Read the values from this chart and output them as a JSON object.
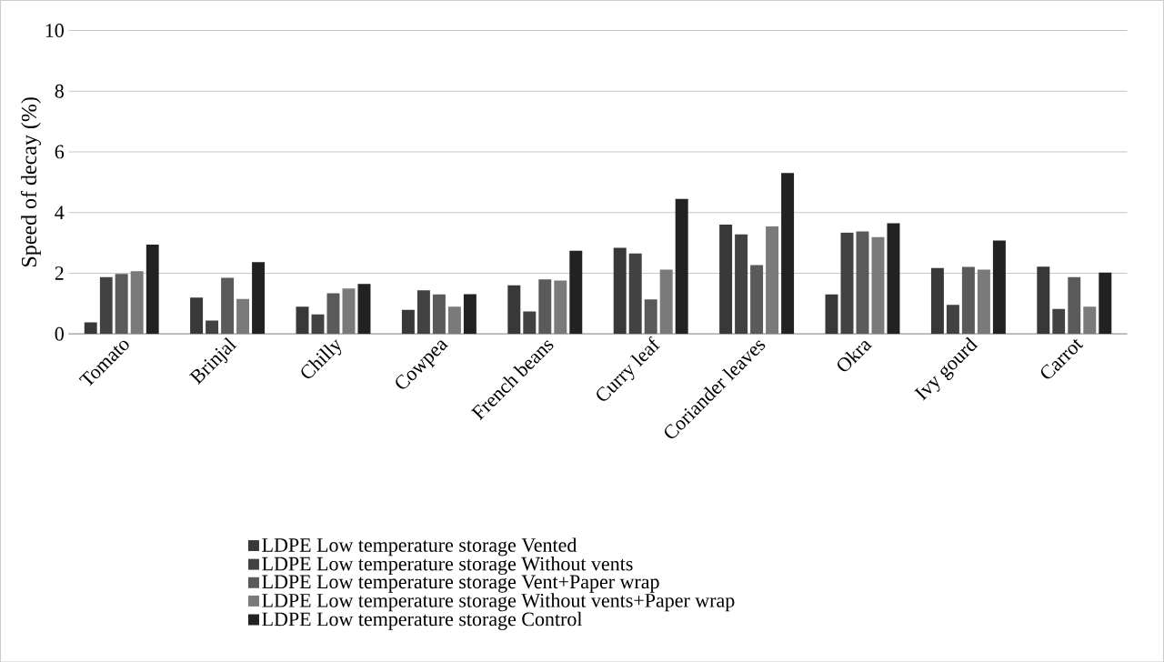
{
  "chart_data": {
    "type": "bar",
    "ylabel": "Speed of decay (%)",
    "categories": [
      "Tomato",
      "Brinjal",
      "Chilly",
      "Cowpea",
      "French beans",
      "Curry leaf",
      "Coriander leaves",
      "Okra",
      "Ivy gourd",
      "Carrot"
    ],
    "series": [
      {
        "name": "LDPE Low temperature storage Vented",
        "color": "#383838",
        "values": [
          0.38,
          1.2,
          0.9,
          0.79,
          1.6,
          2.84,
          3.6,
          1.3,
          2.17,
          2.22
        ]
      },
      {
        "name": "LDPE Low temperature storage Without vents",
        "color": "#424242",
        "values": [
          1.87,
          0.44,
          0.64,
          1.44,
          0.74,
          2.65,
          3.28,
          3.34,
          0.96,
          0.82
        ]
      },
      {
        "name": "LDPE Low temperature storage Vent+Paper wrap",
        "color": "#5a5a5a",
        "values": [
          1.98,
          1.85,
          1.34,
          1.3,
          1.8,
          1.14,
          2.27,
          3.38,
          2.21,
          1.87
        ]
      },
      {
        "name": "LDPE Low temperature storage Without vents+Paper wrap",
        "color": "#7a7a7a",
        "values": [
          2.07,
          1.15,
          1.5,
          0.9,
          1.76,
          2.12,
          3.55,
          3.19,
          2.12,
          0.9
        ]
      },
      {
        "name": "LDPE Low temperature storage Control",
        "color": "#222222",
        "values": [
          2.94,
          2.37,
          1.65,
          1.31,
          2.74,
          4.45,
          5.3,
          3.65,
          3.08,
          2.02
        ]
      }
    ],
    "ylim": [
      0,
      10
    ],
    "yticks": [
      0,
      2,
      4,
      6,
      8,
      10
    ],
    "grid": "y",
    "legend": "bottom"
  }
}
